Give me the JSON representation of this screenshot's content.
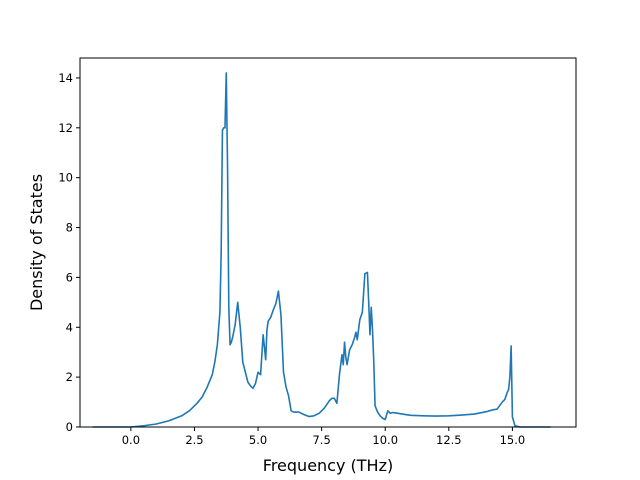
{
  "chart_data": {
    "type": "line",
    "xlabel": "Frequency (THz)",
    "ylabel": "Density of States",
    "xlim": [
      -2.0,
      17.5
    ],
    "ylim": [
      0,
      14.8
    ],
    "xticks": [
      0.0,
      2.5,
      5.0,
      7.5,
      10.0,
      12.5,
      15.0
    ],
    "xtick_labels": [
      "0.0",
      "2.5",
      "5.0",
      "7.5",
      "10.0",
      "12.5",
      "15.0"
    ],
    "yticks": [
      0,
      2,
      4,
      6,
      8,
      10,
      12,
      14
    ],
    "ytick_labels": [
      "0",
      "2",
      "4",
      "6",
      "8",
      "10",
      "12",
      "14"
    ],
    "grid": false,
    "line_color": "#1f77b4",
    "series": [
      {
        "x": [
          -1.5,
          -1.0,
          -0.5,
          0.0,
          0.5,
          1.0,
          1.5,
          2.0,
          2.3,
          2.6,
          2.8,
          3.0,
          3.2,
          3.3,
          3.4,
          3.5,
          3.55,
          3.6,
          3.65,
          3.7,
          3.75,
          3.8,
          3.85,
          3.9,
          3.95,
          4.0,
          4.1,
          4.2,
          4.3,
          4.4,
          4.5,
          4.6,
          4.7,
          4.8,
          4.9,
          5.0,
          5.1,
          5.2,
          5.25,
          5.3,
          5.35,
          5.4,
          5.5,
          5.6,
          5.7,
          5.8,
          5.9,
          6.0,
          6.1,
          6.2,
          6.3,
          6.4,
          6.6,
          6.8,
          7.0,
          7.2,
          7.4,
          7.6,
          7.8,
          7.9,
          8.0,
          8.1,
          8.2,
          8.3,
          8.35,
          8.4,
          8.45,
          8.5,
          8.6,
          8.7,
          8.8,
          8.85,
          8.9,
          9.0,
          9.1,
          9.2,
          9.3,
          9.35,
          9.4,
          9.45,
          9.5,
          9.55,
          9.6,
          9.7,
          9.8,
          9.9,
          10.0,
          10.1,
          10.2,
          10.3,
          10.5,
          10.8,
          11.0,
          11.5,
          12.0,
          12.5,
          13.0,
          13.5,
          13.8,
          14.0,
          14.2,
          14.4,
          14.6,
          14.7,
          14.8,
          14.85,
          14.9,
          14.95,
          15.0,
          15.1,
          15.3,
          15.6,
          16.0,
          16.5
        ],
        "y": [
          0.0,
          0.0,
          0.0,
          0.0,
          0.05,
          0.12,
          0.25,
          0.45,
          0.65,
          0.95,
          1.2,
          1.6,
          2.1,
          2.6,
          3.3,
          4.6,
          7.0,
          11.9,
          12.0,
          12.0,
          14.2,
          10.5,
          4.8,
          3.3,
          3.4,
          3.6,
          4.1,
          5.0,
          4.0,
          2.6,
          2.2,
          1.8,
          1.65,
          1.55,
          1.75,
          2.2,
          2.1,
          3.7,
          3.2,
          2.7,
          3.9,
          4.25,
          4.4,
          4.7,
          4.95,
          5.45,
          4.5,
          2.2,
          1.6,
          1.25,
          0.65,
          0.6,
          0.6,
          0.5,
          0.42,
          0.45,
          0.55,
          0.75,
          1.05,
          1.15,
          1.15,
          0.95,
          2.1,
          2.9,
          2.5,
          3.4,
          2.8,
          2.5,
          3.1,
          3.3,
          3.6,
          3.8,
          3.5,
          4.3,
          4.6,
          6.15,
          6.2,
          5.0,
          3.7,
          4.8,
          3.9,
          2.6,
          0.85,
          0.6,
          0.45,
          0.35,
          0.3,
          0.65,
          0.55,
          0.58,
          0.55,
          0.5,
          0.47,
          0.45,
          0.44,
          0.45,
          0.48,
          0.52,
          0.58,
          0.62,
          0.68,
          0.72,
          1.0,
          1.1,
          1.4,
          1.5,
          2.0,
          3.25,
          0.4,
          0.05,
          0.0,
          0.0,
          0.0,
          0.0
        ]
      }
    ]
  }
}
